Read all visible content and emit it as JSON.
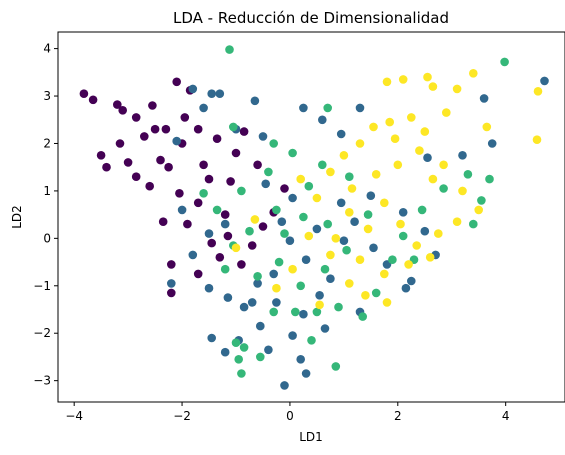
{
  "chart_data": {
    "type": "scatter",
    "title": "LDA - Reducción de Dimensionalidad",
    "xlabel": "LD1",
    "ylabel": "LD2",
    "xlim": [
      -4.3,
      5.1
    ],
    "ylim": [
      -3.45,
      4.35
    ],
    "xticks": [
      -4,
      -2,
      0,
      2,
      4
    ],
    "yticks": [
      -3,
      -2,
      -1,
      0,
      1,
      2,
      3,
      4
    ],
    "grid": false,
    "legend": "none",
    "colors": [
      "#440154",
      "#31688e",
      "#35b779",
      "#fde725"
    ],
    "series": [
      {
        "color": "#440154",
        "points": [
          [
            -3.82,
            3.05
          ],
          [
            -3.65,
            2.92
          ],
          [
            -3.2,
            2.82
          ],
          [
            -3.1,
            2.7
          ],
          [
            -2.85,
            2.55
          ],
          [
            -2.55,
            2.8
          ],
          [
            -2.1,
            3.3
          ],
          [
            -1.85,
            3.12
          ],
          [
            -1.95,
            2.55
          ],
          [
            -2.3,
            2.3
          ],
          [
            -2.7,
            2.15
          ],
          [
            -3.15,
            2.0
          ],
          [
            -3.5,
            1.75
          ],
          [
            -3.0,
            1.6
          ],
          [
            -3.4,
            1.5
          ],
          [
            -2.4,
            1.65
          ],
          [
            -2.85,
            1.3
          ],
          [
            -2.6,
            1.1
          ],
          [
            -2.25,
            1.5
          ],
          [
            -2.05,
            0.95
          ],
          [
            -1.7,
            0.75
          ],
          [
            -1.5,
            1.25
          ],
          [
            -1.2,
            0.5
          ],
          [
            -2.35,
            0.35
          ],
          [
            -1.9,
            0.3
          ],
          [
            -1.15,
            0.05
          ],
          [
            -1.45,
            -0.1
          ],
          [
            -2.2,
            -0.55
          ],
          [
            -1.7,
            -0.75
          ],
          [
            -1.3,
            -0.4
          ],
          [
            -0.9,
            -0.55
          ],
          [
            -0.7,
            -0.15
          ],
          [
            -0.5,
            0.25
          ],
          [
            -0.3,
            0.55
          ],
          [
            -0.1,
            1.05
          ],
          [
            -0.6,
            1.55
          ],
          [
            -1.0,
            1.8
          ],
          [
            -1.35,
            2.1
          ],
          [
            -1.7,
            2.3
          ],
          [
            -2.5,
            2.3
          ],
          [
            -2.0,
            2.0
          ],
          [
            -0.85,
            2.25
          ],
          [
            -2.2,
            -1.15
          ],
          [
            -1.1,
            1.2
          ],
          [
            -1.6,
            1.55
          ]
        ]
      },
      {
        "color": "#31688e",
        "points": [
          [
            -1.8,
            3.15
          ],
          [
            -1.45,
            3.05
          ],
          [
            -1.3,
            3.05
          ],
          [
            -0.65,
            2.9
          ],
          [
            -2.1,
            2.05
          ],
          [
            -1.6,
            2.75
          ],
          [
            -1.0,
            2.3
          ],
          [
            -0.5,
            2.15
          ],
          [
            0.25,
            2.75
          ],
          [
            0.6,
            2.5
          ],
          [
            1.3,
            2.75
          ],
          [
            0.95,
            2.2
          ],
          [
            2.55,
            1.7
          ],
          [
            3.6,
            2.95
          ],
          [
            3.2,
            1.75
          ],
          [
            3.75,
            2.0
          ],
          [
            4.72,
            3.32
          ],
          [
            -1.5,
            0.1
          ],
          [
            -1.2,
            0.3
          ],
          [
            -2.0,
            0.6
          ],
          [
            -1.8,
            -0.35
          ],
          [
            -2.2,
            -0.95
          ],
          [
            -1.5,
            -1.05
          ],
          [
            -1.15,
            -1.25
          ],
          [
            -0.85,
            -1.45
          ],
          [
            -0.6,
            -0.95
          ],
          [
            -0.3,
            -0.75
          ],
          [
            -0.25,
            -1.35
          ],
          [
            -0.55,
            -1.85
          ],
          [
            -0.95,
            -2.15
          ],
          [
            -0.4,
            -2.35
          ],
          [
            0.05,
            -2.05
          ],
          [
            0.25,
            -1.6
          ],
          [
            0.55,
            -1.2
          ],
          [
            0.75,
            -0.85
          ],
          [
            0.3,
            -0.45
          ],
          [
            0.0,
            -0.05
          ],
          [
            -0.15,
            0.35
          ],
          [
            0.5,
            0.2
          ],
          [
            0.95,
            0.75
          ],
          [
            1.2,
            0.35
          ],
          [
            1.55,
            -0.2
          ],
          [
            1.8,
            -0.55
          ],
          [
            2.25,
            -0.9
          ],
          [
            2.15,
            -1.05
          ],
          [
            1.3,
            -1.55
          ],
          [
            0.65,
            -1.9
          ],
          [
            0.2,
            -2.55
          ],
          [
            -0.1,
            -3.1
          ],
          [
            0.3,
            -2.85
          ],
          [
            -1.45,
            -2.1
          ],
          [
            -1.2,
            -2.4
          ],
          [
            -0.7,
            -1.35
          ],
          [
            0.05,
            0.85
          ],
          [
            -0.45,
            1.15
          ],
          [
            1.5,
            0.9
          ],
          [
            2.1,
            0.55
          ],
          [
            2.5,
            0.15
          ],
          [
            2.7,
            -0.35
          ],
          [
            1.0,
            -0.05
          ]
        ]
      },
      {
        "color": "#35b779",
        "points": [
          [
            -1.12,
            3.98
          ],
          [
            3.98,
            3.72
          ],
          [
            -1.05,
            2.35
          ],
          [
            -0.3,
            2.0
          ],
          [
            0.05,
            1.8
          ],
          [
            0.6,
            1.55
          ],
          [
            1.1,
            1.3
          ],
          [
            0.7,
            2.75
          ],
          [
            -0.4,
            1.4
          ],
          [
            -0.9,
            1.0
          ],
          [
            -1.35,
            0.6
          ],
          [
            -1.05,
            -0.15
          ],
          [
            -0.75,
            0.15
          ],
          [
            -0.25,
            0.6
          ],
          [
            0.25,
            0.45
          ],
          [
            0.7,
            0.3
          ],
          [
            1.05,
            -0.25
          ],
          [
            0.65,
            -0.65
          ],
          [
            0.2,
            -1.0
          ],
          [
            -0.2,
            -0.5
          ],
          [
            -0.6,
            -0.8
          ],
          [
            -0.3,
            -1.55
          ],
          [
            0.1,
            -1.55
          ],
          [
            0.5,
            -1.55
          ],
          [
            0.9,
            -1.45
          ],
          [
            1.35,
            -1.65
          ],
          [
            1.6,
            -1.15
          ],
          [
            1.9,
            -0.45
          ],
          [
            2.1,
            0.05
          ],
          [
            2.45,
            0.6
          ],
          [
            2.85,
            1.05
          ],
          [
            3.3,
            1.35
          ],
          [
            3.7,
            1.25
          ],
          [
            3.55,
            0.8
          ],
          [
            3.4,
            0.3
          ],
          [
            -1.0,
            -2.2
          ],
          [
            -0.95,
            -2.55
          ],
          [
            -0.9,
            -2.85
          ],
          [
            -0.85,
            -2.3
          ],
          [
            -0.55,
            -2.5
          ],
          [
            0.4,
            -2.15
          ],
          [
            0.85,
            -2.7
          ],
          [
            -1.2,
            -0.65
          ],
          [
            -1.6,
            0.95
          ],
          [
            -0.1,
            0.1
          ],
          [
            1.45,
            0.5
          ],
          [
            2.3,
            -0.45
          ],
          [
            0.35,
            1.1
          ]
        ]
      },
      {
        "color": "#fde725",
        "points": [
          [
            1.8,
            3.3
          ],
          [
            2.1,
            3.35
          ],
          [
            2.55,
            3.4
          ],
          [
            2.65,
            3.2
          ],
          [
            3.4,
            3.48
          ],
          [
            3.1,
            3.15
          ],
          [
            4.6,
            3.1
          ],
          [
            4.58,
            2.08
          ],
          [
            3.65,
            2.35
          ],
          [
            2.9,
            2.65
          ],
          [
            2.5,
            2.25
          ],
          [
            2.25,
            2.55
          ],
          [
            1.85,
            2.45
          ],
          [
            1.55,
            2.35
          ],
          [
            1.3,
            2.0
          ],
          [
            1.0,
            1.75
          ],
          [
            0.75,
            1.4
          ],
          [
            1.15,
            1.05
          ],
          [
            1.6,
            1.35
          ],
          [
            2.0,
            1.55
          ],
          [
            2.4,
            1.85
          ],
          [
            2.85,
            1.55
          ],
          [
            3.2,
            1.0
          ],
          [
            3.5,
            0.6
          ],
          [
            3.1,
            0.35
          ],
          [
            2.75,
            0.1
          ],
          [
            2.35,
            -0.15
          ],
          [
            2.05,
            0.3
          ],
          [
            1.75,
            0.75
          ],
          [
            1.45,
            0.2
          ],
          [
            1.1,
            0.55
          ],
          [
            0.85,
            0.0
          ],
          [
            1.3,
            -0.45
          ],
          [
            1.75,
            -0.75
          ],
          [
            2.2,
            -0.55
          ],
          [
            2.6,
            -0.4
          ],
          [
            0.5,
            0.85
          ],
          [
            0.2,
            1.25
          ],
          [
            0.35,
            0.05
          ],
          [
            0.75,
            -0.35
          ],
          [
            1.1,
            -0.95
          ],
          [
            0.55,
            -1.4
          ],
          [
            1.4,
            -1.2
          ],
          [
            0.05,
            -0.65
          ],
          [
            -0.25,
            -1.05
          ],
          [
            -1.0,
            -0.2
          ],
          [
            -0.65,
            0.4
          ],
          [
            1.8,
            -1.35
          ],
          [
            2.65,
            1.25
          ],
          [
            1.95,
            2.1
          ]
        ]
      }
    ]
  }
}
